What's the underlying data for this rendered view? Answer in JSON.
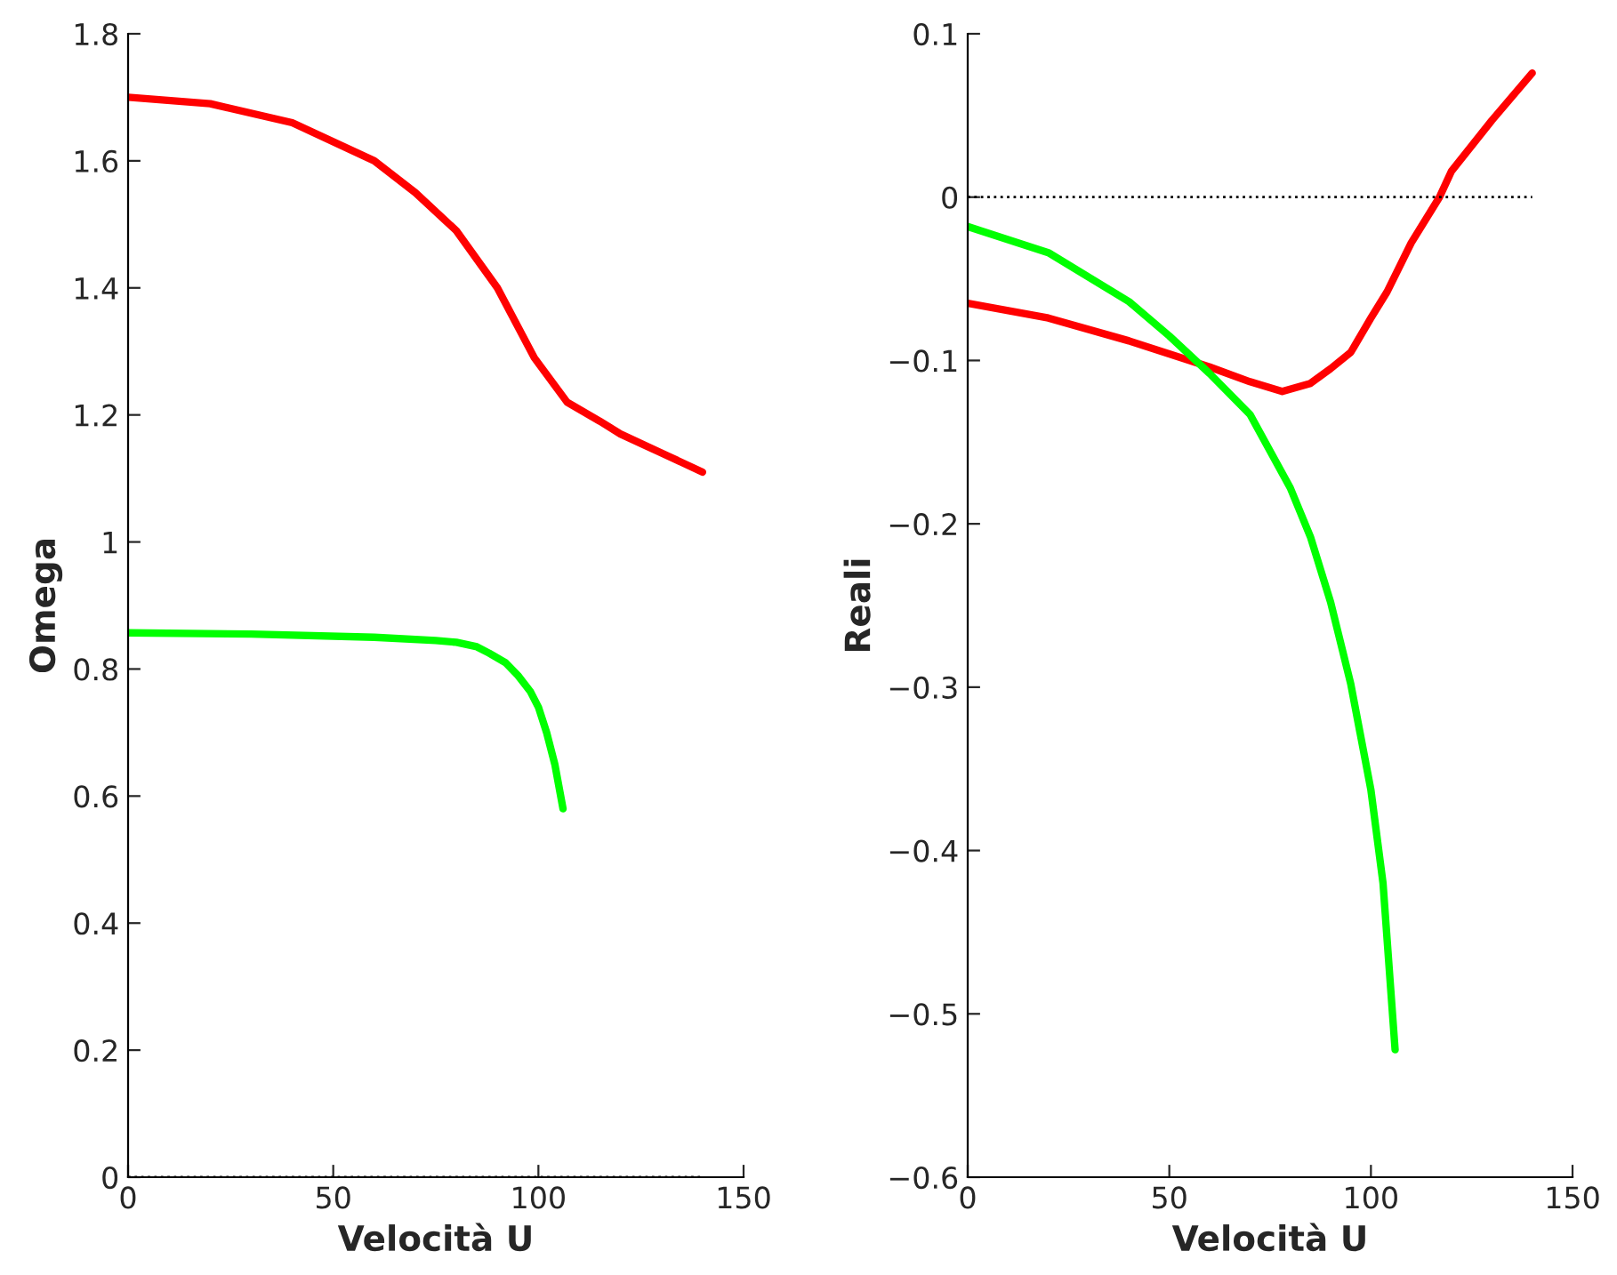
{
  "chart_data": [
    {
      "type": "line",
      "xlabel": "Velocità U",
      "ylabel": "Omega",
      "xlim": [
        0,
        150
      ],
      "xticks": [
        0,
        50,
        100,
        150
      ],
      "ylim": [
        0,
        1.8
      ],
      "yticks": [
        0,
        0.2,
        0.4,
        0.6,
        0.8,
        1,
        1.2,
        1.4,
        1.6,
        1.8
      ],
      "grid": false,
      "legend": false,
      "ref_lines": [
        {
          "axis": "y",
          "value": 0,
          "line_style": "dotted",
          "color": "#000000"
        }
      ],
      "series": [
        {
          "color": "#ff0000",
          "x": [
            0,
            20,
            40,
            60,
            70,
            80,
            90,
            99,
            107,
            115,
            120,
            130,
            140
          ],
          "values": [
            1.7,
            1.69,
            1.66,
            1.6,
            1.55,
            1.49,
            1.4,
            1.29,
            1.22,
            1.19,
            1.17,
            1.14,
            1.11
          ]
        },
        {
          "color": "#00ff00",
          "x": [
            0,
            30,
            60,
            75,
            80,
            85,
            88,
            92,
            95,
            98,
            100,
            102,
            104,
            106
          ],
          "values": [
            0.857,
            0.855,
            0.85,
            0.845,
            0.842,
            0.835,
            0.825,
            0.81,
            0.79,
            0.765,
            0.74,
            0.7,
            0.65,
            0.58
          ]
        }
      ]
    },
    {
      "type": "line",
      "xlabel": "Velocità U",
      "ylabel": "Reali",
      "xlim": [
        0,
        150
      ],
      "xticks": [
        0,
        50,
        100,
        150
      ],
      "ylim": [
        -0.6,
        0.1
      ],
      "yticks": [
        {
          "value": -0.6,
          "label": "−0.6"
        },
        {
          "value": -0.5,
          "label": "−0.5"
        },
        {
          "value": -0.4,
          "label": "−0.4"
        },
        {
          "value": -0.3,
          "label": "−0.3"
        },
        {
          "value": -0.2,
          "label": "−0.2"
        },
        {
          "value": -0.1,
          "label": "−0.1"
        },
        0,
        0.1
      ],
      "grid": false,
      "legend": false,
      "ref_lines": [
        {
          "axis": "y",
          "value": 0,
          "line_style": "dotted",
          "color": "#000000"
        }
      ],
      "series": [
        {
          "color": "#ff0000",
          "x": [
            0,
            20,
            40,
            60,
            70,
            78,
            85,
            90,
            95,
            100,
            104,
            110,
            117,
            120,
            130,
            140
          ],
          "values": [
            -0.065,
            -0.074,
            -0.088,
            -0.104,
            -0.113,
            -0.119,
            -0.114,
            -0.105,
            -0.095,
            -0.074,
            -0.058,
            -0.028,
            0,
            0.016,
            0.047,
            0.076
          ]
        },
        {
          "color": "#00ff00",
          "x": [
            0,
            20,
            40,
            50,
            60,
            70,
            80,
            85,
            90,
            95,
            100,
            103,
            106
          ],
          "values": [
            -0.018,
            -0.034,
            -0.064,
            -0.085,
            -0.108,
            -0.133,
            -0.178,
            -0.208,
            -0.248,
            -0.298,
            -0.363,
            -0.42,
            -0.522
          ]
        }
      ]
    }
  ]
}
